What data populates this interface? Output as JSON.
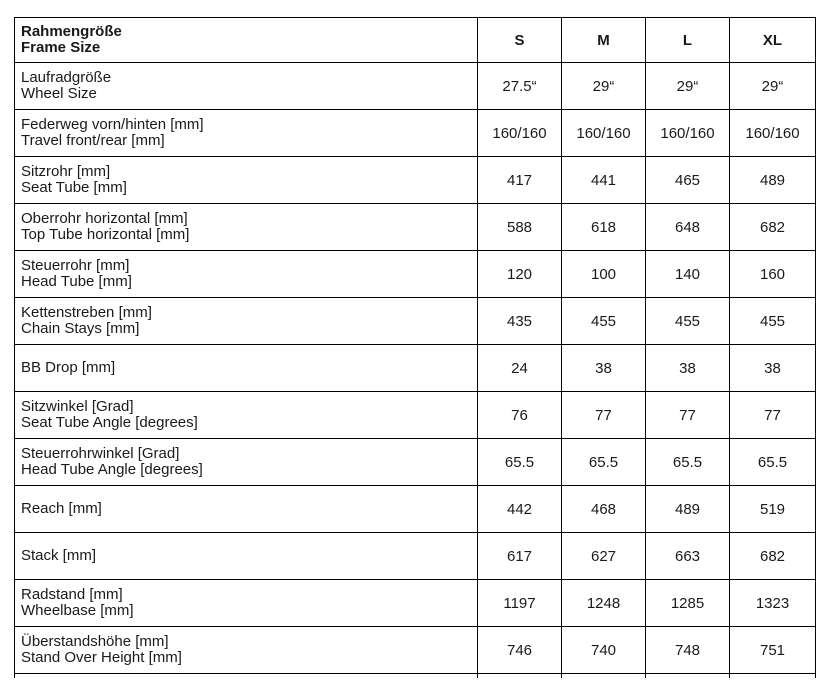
{
  "table": {
    "header": {
      "label_de": "Rahmengröße",
      "label_en": "Frame Size",
      "columns": [
        "S",
        "M",
        "L",
        "XL"
      ]
    },
    "rows": [
      {
        "label_de": "Laufradgröße",
        "label_en": "Wheel Size",
        "values": [
          "27.5“",
          "29“",
          "29“",
          "29“"
        ]
      },
      {
        "label_de": "Federweg vorn/hinten [mm]",
        "label_en": "Travel front/rear [mm]",
        "values": [
          "160/160",
          "160/160",
          "160/160",
          "160/160"
        ]
      },
      {
        "label_de": "Sitzrohr [mm]",
        "label_en": "Seat Tube [mm]",
        "values": [
          "417",
          "441",
          "465",
          "489"
        ]
      },
      {
        "label_de": "Oberrohr horizontal [mm]",
        "label_en": "Top Tube horizontal [mm]",
        "values": [
          "588",
          "618",
          "648",
          "682"
        ]
      },
      {
        "label_de": "Steuerrohr [mm]",
        "label_en": "Head Tube [mm]",
        "values": [
          "120",
          "100",
          "140",
          "160"
        ]
      },
      {
        "label_de": "Kettenstreben [mm]",
        "label_en": "Chain Stays [mm]",
        "values": [
          "435",
          "455",
          "455",
          "455"
        ]
      },
      {
        "label_de": "BB Drop [mm]",
        "values": [
          "24",
          "38",
          "38",
          "38"
        ]
      },
      {
        "label_de": "Sitzwinkel [Grad]",
        "label_en": "Seat Tube Angle [degrees]",
        "values": [
          "76",
          "77",
          "77",
          "77"
        ]
      },
      {
        "label_de": "Steuerrohrwinkel [Grad]",
        "label_en": "Head Tube Angle [degrees]",
        "values": [
          "65.5",
          "65.5",
          "65.5",
          "65.5"
        ]
      },
      {
        "label_de": "Reach [mm]",
        "values": [
          "442",
          "468",
          "489",
          "519"
        ]
      },
      {
        "label_de": "Stack [mm]",
        "values": [
          "617",
          "627",
          "663",
          "682"
        ]
      },
      {
        "label_de": "Radstand [mm]",
        "label_en": "Wheelbase [mm]",
        "values": [
          "1197",
          "1248",
          "1285",
          "1323"
        ]
      },
      {
        "label_de": "Überstandshöhe [mm]",
        "label_en": "Stand Over Height [mm]",
        "values": [
          "746",
          "740",
          "748",
          "751"
        ]
      }
    ]
  },
  "colors": {
    "border": "#000000",
    "text": "#1a1a1a",
    "background": "#ffffff"
  }
}
